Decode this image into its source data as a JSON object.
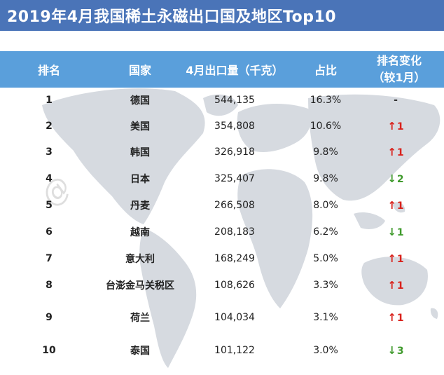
{
  "title": "2019年4月我国稀土永磁出口国及地区Top10",
  "header": {
    "rank": "排名",
    "country": "国家",
    "volume": "4月出口量（千克）",
    "share": "占比",
    "change_line1": "排名变化",
    "change_line2": "（较1月）"
  },
  "rows": [
    {
      "rank": "1",
      "country": "德国",
      "volume": "544,135",
      "share": "16.3%",
      "change": "-",
      "dir": "same"
    },
    {
      "rank": "2",
      "country": "美国",
      "volume": "354,808",
      "share": "10.6%",
      "change": "1",
      "dir": "up"
    },
    {
      "rank": "3",
      "country": "韩国",
      "volume": "326,918",
      "share": "9.8%",
      "change": "1",
      "dir": "up"
    },
    {
      "rank": "4",
      "country": "日本",
      "volume": "325,407",
      "share": "9.8%",
      "change": "2",
      "dir": "down"
    },
    {
      "rank": "5",
      "country": "丹麦",
      "volume": "266,508",
      "share": "8.0%",
      "change": "1",
      "dir": "up"
    },
    {
      "rank": "6",
      "country": "越南",
      "volume": "208,183",
      "share": "6.2%",
      "change": "1",
      "dir": "down"
    },
    {
      "rank": "7",
      "country": "意大利",
      "volume": "168,249",
      "share": "5.0%",
      "change": "1",
      "dir": "up"
    },
    {
      "rank": "8",
      "country": "台澎金马关税区",
      "volume": "108,626",
      "share": "3.3%",
      "change": "1",
      "dir": "up"
    },
    {
      "rank": "9",
      "country": "荷兰",
      "volume": "104,034",
      "share": "3.1%",
      "change": "1",
      "dir": "up"
    },
    {
      "rank": "10",
      "country": "泰国",
      "volume": "101,122",
      "share": "3.0%",
      "change": "3",
      "dir": "down"
    }
  ],
  "colors": {
    "title_bg": "#4a74b8",
    "header_bg": "#5a9fdb",
    "up": "#d9221c",
    "down": "#3f9a2c",
    "map": "#d4d8de"
  },
  "icons": {
    "up": "arrow-up-icon",
    "down": "arrow-down-icon"
  }
}
